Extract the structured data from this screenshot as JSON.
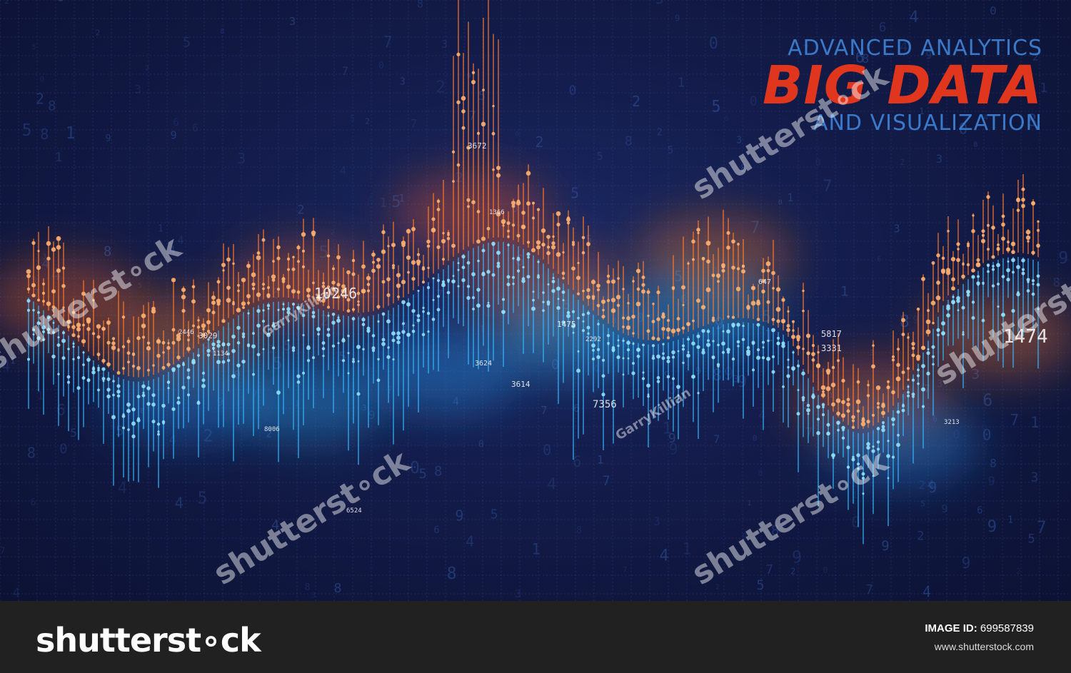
{
  "headline": {
    "top": "ADVANCED ANALYTICS",
    "main": "BIG DATA",
    "bottom": "AND VISUALIZATION"
  },
  "watermarks": {
    "brand": "shutterst∘ck",
    "author": "GarryKillian"
  },
  "footer": {
    "logo": "shutterst∘ck",
    "image_id_label": "IMAGE ID:",
    "image_id_value": "699587839",
    "site": "www.shutterstock.com"
  },
  "colors": {
    "background": "#131c4a",
    "orange": "#ff6a1f",
    "blue": "#2fb6ff",
    "headline_red": "#e1361e",
    "headline_blue": "#3a78c8",
    "footer_bg": "#212121"
  },
  "readouts": [
    "10246",
    "3029",
    "1134",
    "3624",
    "3614",
    "7356",
    "8006",
    "1475",
    "2292",
    "3672",
    "1366",
    "3331",
    "5817",
    "1474",
    "647",
    "3213",
    "2446",
    "6524"
  ]
}
